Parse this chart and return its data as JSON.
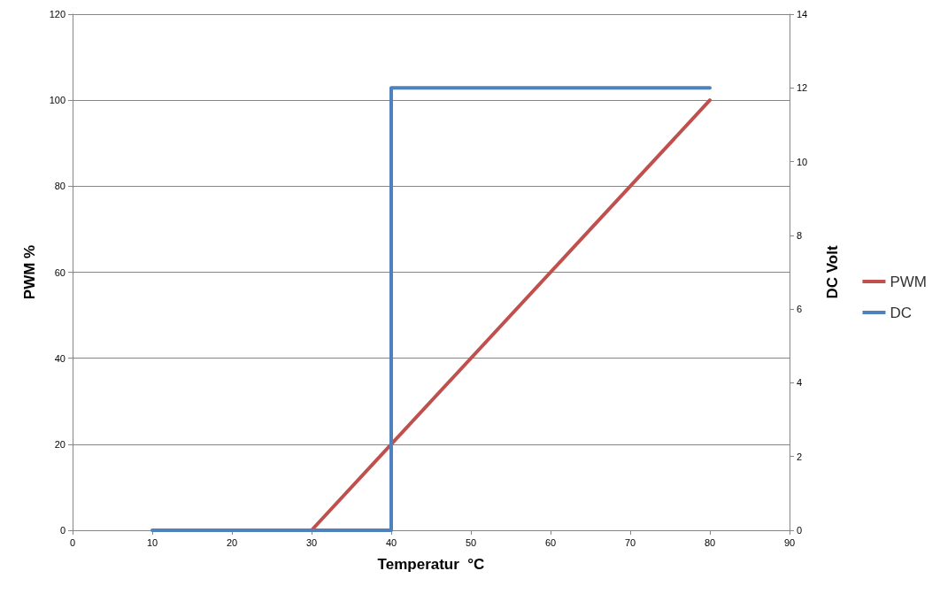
{
  "chart_data": {
    "type": "line",
    "xlabel": "Temperatur  °C",
    "ylabel": "PWM %",
    "y2label": "DC Volt",
    "series": [
      {
        "name": "PWM",
        "color": "#c0504d",
        "x": [
          30,
          80
        ],
        "values": [
          0,
          100
        ]
      },
      {
        "name": "DC",
        "color": "#4f81bd",
        "axis": "y2",
        "x": [
          10,
          40,
          40,
          80
        ],
        "values": [
          0,
          0,
          12,
          12
        ]
      }
    ],
    "xlim": [
      0,
      90
    ],
    "xticks": [
      0,
      10,
      20,
      30,
      40,
      50,
      60,
      70,
      80,
      90
    ],
    "ylim": [
      0,
      120
    ],
    "yticks": [
      0,
      20,
      40,
      60,
      80,
      100,
      120
    ],
    "y2lim": [
      0,
      14
    ],
    "y2ticks": [
      0,
      2,
      4,
      6,
      8,
      10,
      12,
      14
    ],
    "grid": "y",
    "legend": "right",
    "marker": "none",
    "line_style": "solid"
  }
}
